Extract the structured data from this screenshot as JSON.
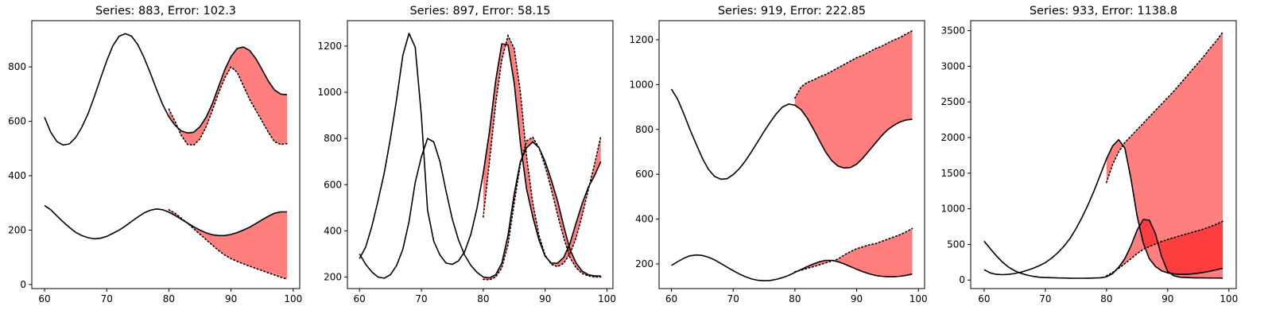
{
  "figure": {
    "background": "#ffffff",
    "fill_color": "#ff0000",
    "fill_opacity": 0.5,
    "line_color": "#000000"
  },
  "chart_data": [
    {
      "type": "line",
      "title": "Series: 883, Error: 102.3",
      "xlim": [
        57.95,
        101.05
      ],
      "ylim": [
        -15,
        970
      ],
      "xticks": [
        60,
        70,
        80,
        90,
        100
      ],
      "yticks": [
        0,
        200,
        400,
        600,
        800
      ],
      "grid": false,
      "series": [
        {
          "role": "actual",
          "x": [
            60,
            61,
            62,
            63,
            64,
            65,
            66,
            67,
            68,
            69,
            70,
            71,
            72,
            73,
            74,
            75,
            76,
            77,
            78,
            79,
            80,
            81,
            82,
            83,
            84,
            85,
            86,
            87,
            88,
            89,
            90,
            91,
            92,
            93,
            94,
            95,
            96,
            97,
            98,
            99
          ],
          "values": [
            615,
            560,
            525,
            513,
            517,
            540,
            578,
            628,
            690,
            757,
            822,
            878,
            913,
            922,
            913,
            882,
            835,
            778,
            718,
            662,
            617,
            585,
            565,
            557,
            560,
            580,
            615,
            665,
            728,
            790,
            838,
            868,
            873,
            860,
            830,
            790,
            748,
            715,
            700,
            698
          ]
        },
        {
          "role": "forecast",
          "x": [
            80,
            81,
            82,
            83,
            84,
            85,
            86,
            87,
            88,
            89,
            90,
            91,
            92,
            93,
            94,
            95,
            96,
            97,
            98,
            99
          ],
          "values": [
            645,
            600,
            548,
            515,
            513,
            535,
            580,
            640,
            705,
            760,
            800,
            780,
            730,
            680,
            640,
            600,
            560,
            525,
            515,
            518
          ]
        },
        {
          "role": "actual",
          "x": [
            60,
            61,
            62,
            63,
            64,
            65,
            66,
            67,
            68,
            69,
            70,
            71,
            72,
            73,
            74,
            75,
            76,
            77,
            78,
            79,
            80,
            81,
            82,
            83,
            84,
            85,
            86,
            87,
            88,
            89,
            90,
            91,
            92,
            93,
            94,
            95,
            96,
            97,
            98,
            99
          ],
          "values": [
            290,
            275,
            252,
            230,
            210,
            192,
            180,
            172,
            168,
            170,
            177,
            188,
            200,
            215,
            232,
            248,
            263,
            273,
            278,
            275,
            266,
            254,
            240,
            226,
            212,
            200,
            190,
            183,
            180,
            180,
            184,
            191,
            200,
            211,
            224,
            238,
            251,
            262,
            267,
            267
          ]
        },
        {
          "role": "forecast",
          "x": [
            80,
            81,
            82,
            83,
            84,
            85,
            86,
            87,
            88,
            89,
            90,
            91,
            92,
            93,
            94,
            95,
            96,
            97,
            98,
            99
          ],
          "values": [
            275,
            262,
            244,
            225,
            205,
            185,
            165,
            145,
            125,
            108,
            95,
            85,
            76,
            67,
            59,
            51,
            43,
            35,
            27,
            20
          ]
        }
      ]
    },
    {
      "type": "line",
      "title": "Series: 897, Error: 58.15",
      "xlim": [
        58.05,
        100.95
      ],
      "ylim": [
        150,
        1310
      ],
      "xticks": [
        60,
        70,
        80,
        90,
        100
      ],
      "yticks": [
        200,
        400,
        600,
        800,
        1000,
        1200
      ],
      "grid": false,
      "series": [
        {
          "role": "actual",
          "x": [
            60,
            61,
            62,
            63,
            64,
            65,
            66,
            67,
            68,
            69,
            70,
            71,
            72,
            73,
            74,
            75,
            76,
            77,
            78,
            79,
            80,
            81,
            82,
            83,
            84,
            85,
            86,
            87,
            88,
            89,
            90,
            91,
            92,
            93,
            94,
            95,
            96,
            97,
            98,
            99
          ],
          "values": [
            280,
            330,
            420,
            530,
            650,
            800,
            970,
            1160,
            1255,
            1195,
            900,
            490,
            355,
            295,
            260,
            255,
            270,
            310,
            385,
            500,
            650,
            830,
            1050,
            1210,
            1205,
            1040,
            780,
            580,
            460,
            360,
            290,
            260,
            260,
            285,
            345,
            435,
            520,
            590,
            640,
            700
          ]
        },
        {
          "role": "forecast",
          "x": [
            80,
            81,
            82,
            83,
            84,
            85,
            86,
            87,
            88,
            89,
            90,
            91,
            92,
            93,
            94,
            95,
            96,
            97,
            98,
            99
          ],
          "values": [
            460,
            700,
            950,
            1140,
            1245,
            1190,
            1000,
            720,
            520,
            380,
            295,
            255,
            245,
            260,
            300,
            370,
            470,
            580,
            690,
            810
          ]
        },
        {
          "role": "actual",
          "x": [
            60,
            61,
            62,
            63,
            64,
            65,
            66,
            67,
            68,
            69,
            70,
            71,
            72,
            73,
            74,
            75,
            76,
            77,
            78,
            79,
            80,
            81,
            82,
            83,
            84,
            85,
            86,
            87,
            88,
            89,
            90,
            91,
            92,
            93,
            94,
            95,
            96,
            97,
            98,
            99
          ],
          "values": [
            300,
            255,
            222,
            200,
            195,
            210,
            250,
            320,
            440,
            610,
            720,
            800,
            785,
            700,
            570,
            450,
            360,
            295,
            250,
            220,
            200,
            196,
            210,
            260,
            380,
            560,
            700,
            760,
            785,
            760,
            700,
            620,
            530,
            420,
            320,
            260,
            225,
            210,
            205,
            205
          ]
        },
        {
          "role": "forecast",
          "x": [
            80,
            81,
            82,
            83,
            84,
            85,
            86,
            87,
            88,
            89,
            90,
            91,
            92,
            93,
            94,
            95,
            96,
            97,
            98,
            99
          ],
          "values": [
            190,
            188,
            200,
            240,
            340,
            520,
            690,
            790,
            805,
            760,
            680,
            580,
            470,
            370,
            285,
            240,
            215,
            205,
            200,
            200
          ]
        }
      ]
    },
    {
      "type": "line",
      "title": "Series: 919, Error: 222.85",
      "xlim": [
        58.0,
        101.0
      ],
      "ylim": [
        90,
        1285
      ],
      "xticks": [
        60,
        70,
        80,
        90,
        100
      ],
      "yticks": [
        200,
        400,
        600,
        800,
        1000,
        1200
      ],
      "grid": false,
      "series": [
        {
          "role": "actual",
          "x": [
            60,
            61,
            62,
            63,
            64,
            65,
            66,
            67,
            68,
            69,
            70,
            71,
            72,
            73,
            74,
            75,
            76,
            77,
            78,
            79,
            80,
            81,
            82,
            83,
            84,
            85,
            86,
            87,
            88,
            89,
            90,
            91,
            92,
            93,
            94,
            95,
            96,
            97,
            98,
            99
          ],
          "values": [
            980,
            935,
            870,
            800,
            735,
            672,
            622,
            590,
            578,
            580,
            598,
            625,
            660,
            702,
            746,
            790,
            832,
            870,
            900,
            913,
            908,
            888,
            850,
            802,
            748,
            698,
            660,
            636,
            628,
            630,
            645,
            672,
            705,
            738,
            770,
            798,
            818,
            833,
            842,
            845
          ]
        },
        {
          "role": "forecast",
          "x": [
            80,
            81,
            82,
            83,
            84,
            85,
            86,
            87,
            88,
            89,
            90,
            91,
            92,
            93,
            94,
            95,
            96,
            97,
            98,
            99
          ],
          "values": [
            940,
            990,
            1010,
            1020,
            1035,
            1045,
            1060,
            1075,
            1090,
            1105,
            1120,
            1130,
            1145,
            1160,
            1170,
            1185,
            1198,
            1210,
            1225,
            1240
          ]
        },
        {
          "role": "actual",
          "x": [
            60,
            61,
            62,
            63,
            64,
            65,
            66,
            67,
            68,
            69,
            70,
            71,
            72,
            73,
            74,
            75,
            76,
            77,
            78,
            79,
            80,
            81,
            82,
            83,
            84,
            85,
            86,
            87,
            88,
            89,
            90,
            91,
            92,
            93,
            94,
            95,
            96,
            97,
            98,
            99
          ],
          "values": [
            193,
            210,
            225,
            236,
            240,
            238,
            230,
            218,
            202,
            186,
            170,
            155,
            143,
            133,
            127,
            125,
            126,
            131,
            139,
            149,
            162,
            175,
            188,
            200,
            210,
            216,
            216,
            210,
            200,
            188,
            176,
            165,
            156,
            149,
            145,
            143,
            143,
            145,
            149,
            155
          ]
        },
        {
          "role": "forecast",
          "x": [
            80,
            81,
            82,
            83,
            84,
            85,
            86,
            87,
            88,
            89,
            90,
            91,
            92,
            93,
            94,
            95,
            96,
            97,
            98,
            99
          ],
          "values": [
            165,
            172,
            180,
            188,
            196,
            205,
            213,
            222,
            240,
            255,
            268,
            276,
            285,
            290,
            300,
            310,
            320,
            330,
            343,
            358
          ]
        }
      ]
    },
    {
      "type": "line",
      "title": "Series: 933, Error: 1138.8",
      "xlim": [
        57.8,
        101.2
      ],
      "ylim": [
        -120,
        3640
      ],
      "xticks": [
        60,
        70,
        80,
        90,
        100
      ],
      "yticks": [
        0,
        500,
        1000,
        1500,
        2000,
        2500,
        3000,
        3500
      ],
      "grid": false,
      "series": [
        {
          "role": "actual",
          "x": [
            60,
            61,
            62,
            63,
            64,
            65,
            66,
            67,
            68,
            69,
            70,
            71,
            72,
            73,
            74,
            75,
            76,
            77,
            78,
            79,
            80,
            81,
            82,
            83,
            84,
            85,
            86,
            87,
            88,
            89,
            90,
            91,
            92,
            93,
            94,
            95,
            96,
            97,
            98,
            99
          ],
          "values": [
            545,
            440,
            340,
            250,
            180,
            130,
            95,
            70,
            52,
            40,
            35,
            33,
            30,
            28,
            26,
            25,
            25,
            26,
            28,
            32,
            45,
            90,
            180,
            300,
            480,
            700,
            850,
            840,
            650,
            330,
            120,
            60,
            40,
            35,
            32,
            30,
            29,
            28,
            28,
            27
          ]
        },
        {
          "role": "forecast",
          "x": [
            80,
            81,
            82,
            83,
            84,
            85,
            86,
            87,
            88,
            89,
            90,
            91,
            92,
            93,
            94,
            95,
            96,
            97,
            98,
            99
          ],
          "values": [
            60,
            105,
            165,
            230,
            300,
            370,
            430,
            470,
            505,
            540,
            570,
            595,
            620,
            645,
            670,
            695,
            720,
            750,
            785,
            825
          ]
        },
        {
          "role": "actual",
          "x": [
            60,
            61,
            62,
            63,
            64,
            65,
            66,
            67,
            68,
            69,
            70,
            71,
            72,
            73,
            74,
            75,
            76,
            77,
            78,
            79,
            80,
            81,
            82,
            83,
            84,
            85,
            86,
            87,
            88,
            89,
            90,
            91,
            92,
            93,
            94,
            95,
            96,
            97,
            98,
            99
          ],
          "values": [
            145,
            100,
            80,
            75,
            80,
            92,
            110,
            135,
            165,
            200,
            245,
            305,
            380,
            470,
            580,
            720,
            880,
            1060,
            1260,
            1480,
            1700,
            1880,
            1970,
            1850,
            1420,
            900,
            520,
            300,
            190,
            130,
            100,
            85,
            80,
            80,
            85,
            95,
            110,
            125,
            145,
            165
          ]
        },
        {
          "role": "forecast",
          "x": [
            80,
            81,
            82,
            83,
            84,
            85,
            86,
            87,
            88,
            89,
            90,
            91,
            92,
            93,
            94,
            95,
            96,
            97,
            98,
            99
          ],
          "values": [
            1370,
            1620,
            1800,
            1930,
            2020,
            2110,
            2200,
            2290,
            2380,
            2470,
            2560,
            2650,
            2750,
            2850,
            2950,
            3050,
            3150,
            3260,
            3360,
            3480
          ]
        }
      ]
    }
  ]
}
